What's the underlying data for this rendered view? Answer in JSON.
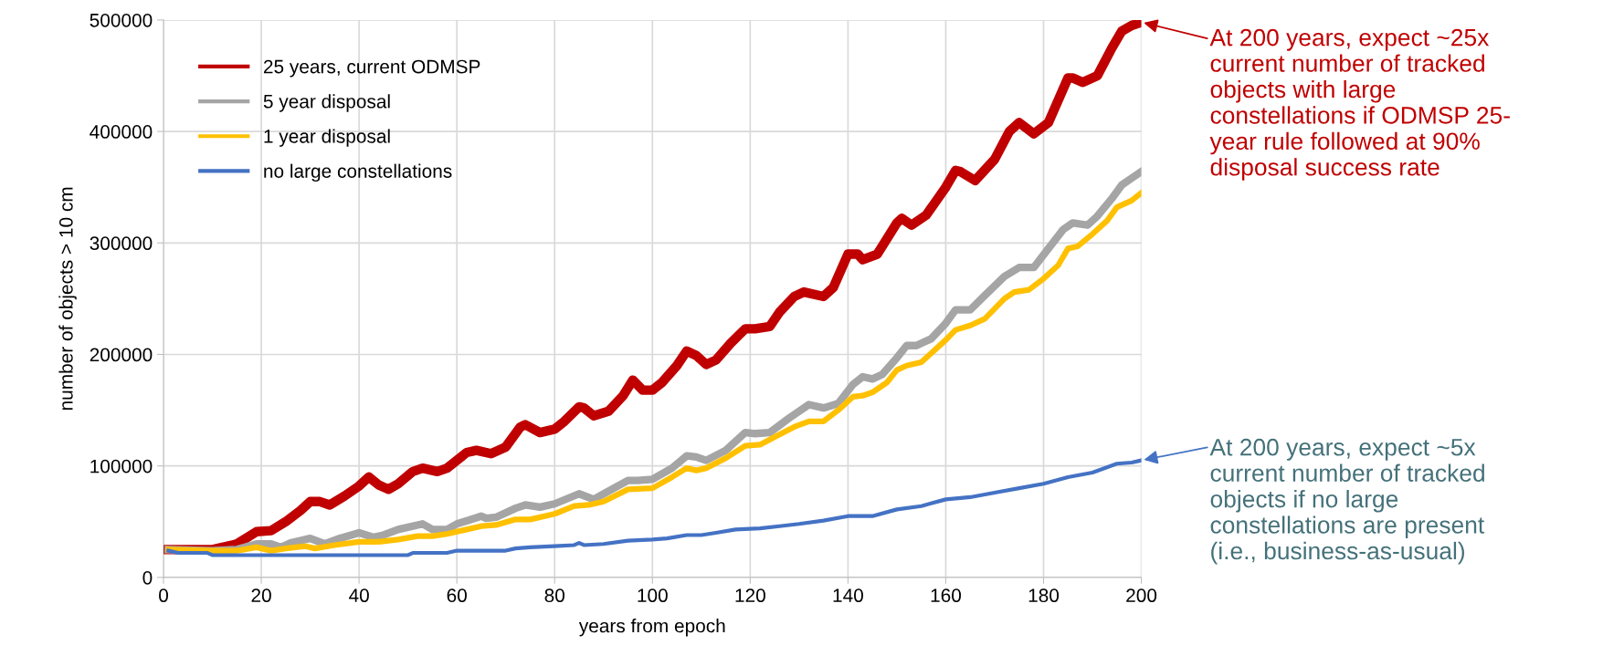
{
  "chart_data": {
    "type": "line",
    "xlabel": "years from epoch",
    "ylabel": "number of objects > 10 cm",
    "xlim": [
      0,
      200
    ],
    "xticks": [
      0,
      20,
      40,
      60,
      80,
      100,
      120,
      140,
      160,
      180,
      200
    ],
    "ylim": [
      0,
      500000
    ],
    "yticks": [
      0,
      100000,
      200000,
      300000,
      400000,
      500000
    ],
    "grid": true,
    "legend": "top left",
    "line_style": "solid",
    "series": [
      {
        "name": "25 years, current ODMSP",
        "color": "#c00000",
        "x": [
          1,
          10,
          15,
          19,
          22,
          25,
          28,
          30,
          32,
          34,
          37,
          40,
          42,
          44,
          46,
          48,
          51,
          53,
          56,
          58,
          62,
          64,
          67,
          70,
          73,
          74,
          77,
          80,
          82,
          85,
          86,
          88,
          91,
          94,
          96,
          98,
          100,
          102,
          105,
          107,
          109,
          111,
          113,
          116,
          119,
          121,
          124,
          126,
          129,
          131,
          135,
          137,
          140,
          142,
          143,
          146,
          150,
          151,
          153,
          156,
          160,
          162,
          163,
          166,
          170,
          173,
          175,
          178,
          181,
          185,
          186,
          188,
          191,
          194,
          196,
          198,
          200
        ],
        "values": [
          25000,
          25000,
          30000,
          41000,
          42000,
          50000,
          60000,
          68000,
          68000,
          65000,
          73000,
          82000,
          90000,
          83000,
          79000,
          84000,
          95000,
          98000,
          95000,
          98000,
          112000,
          114000,
          111000,
          117000,
          135000,
          137000,
          130000,
          133000,
          140000,
          153000,
          152000,
          145000,
          149000,
          163000,
          177000,
          168000,
          168000,
          175000,
          190000,
          203000,
          199000,
          191000,
          195000,
          210000,
          223000,
          223000,
          225000,
          238000,
          252000,
          256000,
          252000,
          260000,
          290000,
          290000,
          285000,
          290000,
          318000,
          322000,
          316000,
          325000,
          350000,
          365000,
          364000,
          356000,
          375000,
          400000,
          408000,
          398000,
          408000,
          448000,
          448000,
          444000,
          450000,
          475000,
          490000,
          495000,
          498000
        ]
      },
      {
        "name": "5 year disposal",
        "color": "#a5a5a5",
        "x": [
          1,
          10,
          15,
          19,
          22,
          24,
          26,
          30,
          33,
          36,
          40,
          43,
          45,
          48,
          53,
          55,
          58,
          60,
          65,
          66,
          68,
          72,
          74,
          77,
          80,
          85,
          88,
          90,
          95,
          97,
          100,
          104,
          107,
          109,
          111,
          115,
          119,
          121,
          124,
          128,
          132,
          135,
          138,
          141,
          143,
          145,
          147,
          150,
          152,
          154,
          157,
          160,
          162,
          165,
          168,
          172,
          175,
          178,
          181,
          184,
          186,
          189,
          191,
          194,
          196,
          198,
          200
        ],
        "values": [
          25000,
          24000,
          25000,
          30000,
          30000,
          27000,
          31000,
          35000,
          30000,
          35000,
          40000,
          36000,
          38000,
          43000,
          48000,
          43000,
          43000,
          48000,
          55000,
          53000,
          54000,
          62000,
          65000,
          63000,
          66000,
          75000,
          70000,
          75000,
          87000,
          87000,
          88000,
          98000,
          109000,
          108000,
          105000,
          114000,
          130000,
          129000,
          130000,
          143000,
          155000,
          152000,
          156000,
          173000,
          180000,
          178000,
          182000,
          197000,
          208000,
          208000,
          214000,
          228000,
          240000,
          240000,
          253000,
          270000,
          278000,
          278000,
          295000,
          312000,
          318000,
          316000,
          324000,
          340000,
          352000,
          358000,
          364000
        ]
      },
      {
        "name": "1 year disposal",
        "color": "#ffc000",
        "x": [
          1,
          10,
          15,
          19,
          22,
          25,
          29,
          31,
          35,
          40,
          44,
          48,
          52,
          55,
          58,
          62,
          65,
          68,
          72,
          75,
          80,
          84,
          87,
          90,
          95,
          100,
          104,
          107,
          109,
          111,
          115,
          119,
          122,
          125,
          129,
          132,
          135,
          138,
          141,
          143,
          145,
          148,
          150,
          152,
          155,
          158,
          160,
          162,
          165,
          168,
          172,
          174,
          177,
          180,
          183,
          185,
          187,
          190,
          193,
          195,
          198,
          200
        ],
        "values": [
          25000,
          24000,
          24000,
          27000,
          24000,
          26000,
          28000,
          26000,
          29000,
          32000,
          32000,
          34000,
          37000,
          37000,
          39000,
          43000,
          46000,
          47000,
          52000,
          52000,
          57000,
          64000,
          65000,
          68000,
          79000,
          80000,
          90000,
          98000,
          96000,
          98000,
          107000,
          118000,
          119000,
          126000,
          135000,
          140000,
          140000,
          150000,
          162000,
          163000,
          166000,
          175000,
          186000,
          190000,
          193000,
          205000,
          213000,
          222000,
          226000,
          232000,
          250000,
          256000,
          258000,
          268000,
          280000,
          295000,
          297000,
          308000,
          320000,
          332000,
          338000,
          345000
        ]
      },
      {
        "name": "no large constellations",
        "color": "#4472c4",
        "x": [
          1,
          3,
          9,
          10,
          20,
          50,
          51,
          58,
          60,
          70,
          72,
          75,
          80,
          84,
          85,
          86,
          90,
          95,
          100,
          103,
          107,
          110,
          113,
          117,
          122,
          126,
          130,
          135,
          140,
          145,
          150,
          155,
          160,
          165,
          170,
          175,
          180,
          185,
          190,
          195,
          198,
          200
        ],
        "values": [
          24000,
          22000,
          22000,
          20000,
          20000,
          20000,
          22000,
          22000,
          24000,
          24000,
          26000,
          27000,
          28000,
          29000,
          31000,
          29000,
          30000,
          33000,
          34000,
          35000,
          38000,
          38000,
          40000,
          43000,
          44000,
          46000,
          48000,
          51000,
          55000,
          55000,
          61000,
          64000,
          70000,
          72000,
          76000,
          80000,
          84000,
          90000,
          94000,
          102000,
          103000,
          105000
        ]
      }
    ],
    "annotations": [
      {
        "text": "At 200 years, expect ~25x\ncurrent number of tracked\nobjects with large\nconstellations if ODMSP 25-\nyear rule followed at 90%\ndisposal success rate",
        "x": 200,
        "y": 498000
      },
      {
        "text": "At 200 years, expect ~5x\ncurrent number of tracked\nobjects if no large\nconstellations are present\n(i.e., business-as-usual)",
        "x": 200,
        "y": 105000
      }
    ]
  }
}
